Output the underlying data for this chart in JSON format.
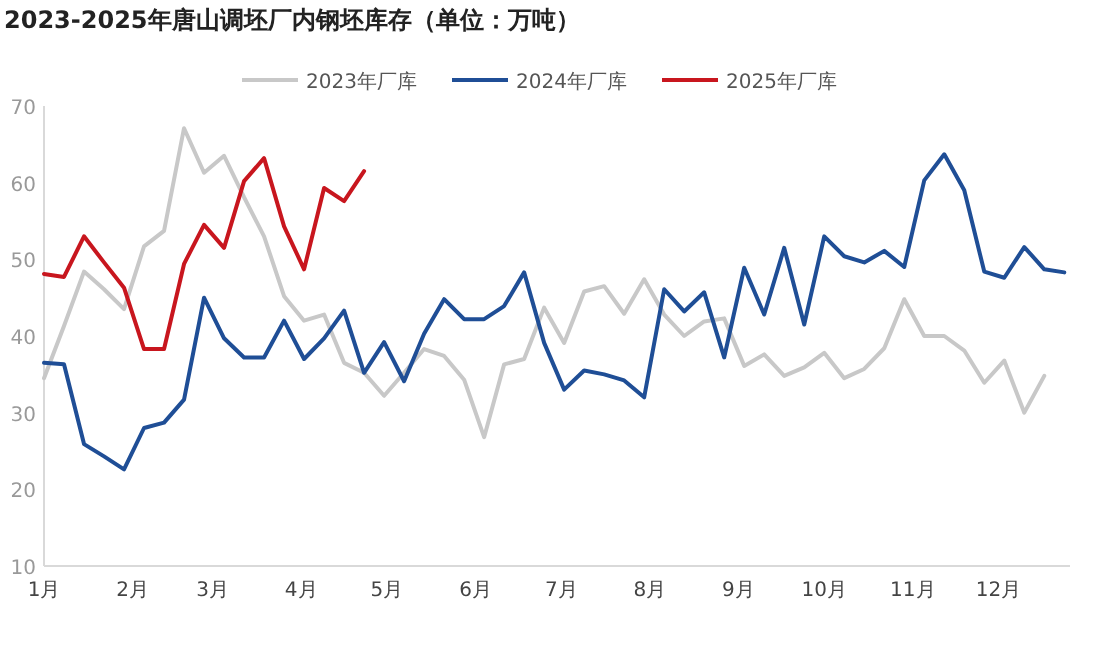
{
  "chart_data": {
    "type": "line",
    "title": "2023-2025年唐山调坯厂内钢坯库存（单位：万吨）",
    "x": [
      "--01-01",
      "--01-08",
      "--01-15",
      "--01-22",
      "--01-29",
      "--02-05",
      "--02-12",
      "--02-19",
      "--02-26",
      "--03-05",
      "--03-12",
      "--03-19",
      "--03-26",
      "--04-02",
      "--04-09",
      "--04-16",
      "--04-23",
      "--04-30",
      "--05-07",
      "--05-14",
      "--05-21",
      "--05-28",
      "--06-04",
      "--06-11",
      "--06-18",
      "--06-25",
      "--07-02",
      "--07-09",
      "--07-16",
      "--07-23",
      "--07-30",
      "--08-06",
      "--08-13",
      "--08-20",
      "--08-27",
      "--09-03",
      "--09-10",
      "--09-17",
      "--09-24",
      "--10-01",
      "--10-08",
      "--10-15",
      "--10-22",
      "--10-29",
      "--11-05",
      "--11-12",
      "--11-19",
      "--11-26",
      "--12-03",
      "--12-10",
      "--12-17",
      "--12-24"
    ],
    "series": [
      {
        "name": "2023年厂库",
        "color": "#c8c8c8",
        "values": [
          34.5,
          41.3,
          48.4,
          46.1,
          43.5,
          51.7,
          53.7,
          67.1,
          61.3,
          63.5,
          58.1,
          53.0,
          45.2,
          42.0,
          42.8,
          36.5,
          35.2,
          32.2,
          35.2,
          38.3,
          37.4,
          34.3,
          26.8,
          36.3,
          37.0,
          43.7,
          39.1,
          45.8,
          46.5,
          42.9,
          47.4,
          42.8,
          40.0,
          41.9,
          42.3,
          36.1,
          37.6,
          34.8,
          35.9,
          37.8,
          34.5,
          35.7,
          38.4,
          44.8,
          40.0,
          40.0,
          38.1,
          33.9,
          36.8,
          30.0,
          34.8,
          null
        ]
      },
      {
        "name": "2024年厂库",
        "color": "#1f4e96",
        "values": [
          36.5,
          36.3,
          25.9,
          24.3,
          22.6,
          28.0,
          28.7,
          31.7,
          45.0,
          39.7,
          37.2,
          37.2,
          42.0,
          37.0,
          39.7,
          43.3,
          35.2,
          39.2,
          34.1,
          40.3,
          44.8,
          42.2,
          42.2,
          43.9,
          48.3,
          39.1,
          33.0,
          35.5,
          35.0,
          34.2,
          32.0,
          46.1,
          43.2,
          45.7,
          37.2,
          48.9,
          42.8,
          51.5,
          41.5,
          53.0,
          50.4,
          49.6,
          51.1,
          49.0,
          60.3,
          63.7,
          59.0,
          48.4,
          47.6,
          51.6,
          48.7,
          48.3
        ]
      },
      {
        "name": "2025年厂库",
        "color": "#c8161e",
        "values": [
          48.1,
          47.7,
          53.0,
          49.6,
          46.3,
          38.3,
          38.3,
          49.4,
          54.5,
          51.5,
          60.2,
          63.2,
          54.3,
          48.7,
          59.3,
          57.6,
          61.5,
          null,
          null,
          null,
          null,
          null,
          null,
          null,
          null,
          null,
          null,
          null,
          null,
          null,
          null,
          null,
          null,
          null,
          null,
          null,
          null,
          null,
          null,
          null,
          null,
          null,
          null,
          null,
          null,
          null,
          null,
          null,
          null,
          null,
          null,
          null
        ]
      }
    ],
    "xlim": [
      "--01-01",
      "--12-26"
    ],
    "xticks": [
      {
        "value": "--01-01",
        "label": "1月"
      },
      {
        "value": "--02-01",
        "label": "2月"
      },
      {
        "value": "--03-01",
        "label": "3月"
      },
      {
        "value": "--04-01",
        "label": "4月"
      },
      {
        "value": "--05-01",
        "label": "5月"
      },
      {
        "value": "--06-01",
        "label": "6月"
      },
      {
        "value": "--07-01",
        "label": "7月"
      },
      {
        "value": "--08-01",
        "label": "8月"
      },
      {
        "value": "--09-01",
        "label": "9月"
      },
      {
        "value": "--10-01",
        "label": "10月"
      },
      {
        "value": "--11-01",
        "label": "11月"
      },
      {
        "value": "--12-01",
        "label": "12月"
      }
    ],
    "ylim": [
      10,
      70
    ],
    "yticks": [
      10,
      20,
      30,
      40,
      50,
      60,
      70
    ],
    "legend": "top",
    "line_style": "solid",
    "marker": "none"
  }
}
